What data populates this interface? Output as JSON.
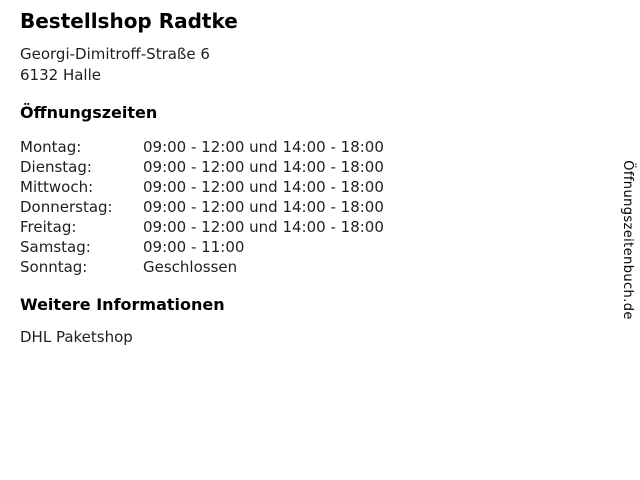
{
  "business": {
    "name": "Bestellshop Radtke",
    "address_line1": "Georgi-Dimitroff-Straße 6",
    "address_line2": "6132 Halle"
  },
  "opening_hours": {
    "heading": "Öffnungszeiten",
    "rows": [
      {
        "day": "Montag:",
        "hours": "09:00 - 12:00 und 14:00 - 18:00"
      },
      {
        "day": "Dienstag:",
        "hours": "09:00 - 12:00 und 14:00 - 18:00"
      },
      {
        "day": "Mittwoch:",
        "hours": "09:00 - 12:00 und 14:00 - 18:00"
      },
      {
        "day": "Donnerstag:",
        "hours": "09:00 - 12:00 und 14:00 - 18:00"
      },
      {
        "day": "Freitag:",
        "hours": "09:00 - 12:00 und 14:00 - 18:00"
      },
      {
        "day": "Samstag:",
        "hours": "09:00 - 11:00"
      },
      {
        "day": "Sonntag:",
        "hours": "Geschlossen"
      }
    ]
  },
  "additional_info": {
    "heading": "Weitere Informationen",
    "text": "DHL Paketshop"
  },
  "watermark": {
    "text": "Öffnungszeitenbuch.de"
  },
  "colors": {
    "background": "#ffffff",
    "heading_text": "#000000",
    "body_text": "#1f1f1f"
  }
}
